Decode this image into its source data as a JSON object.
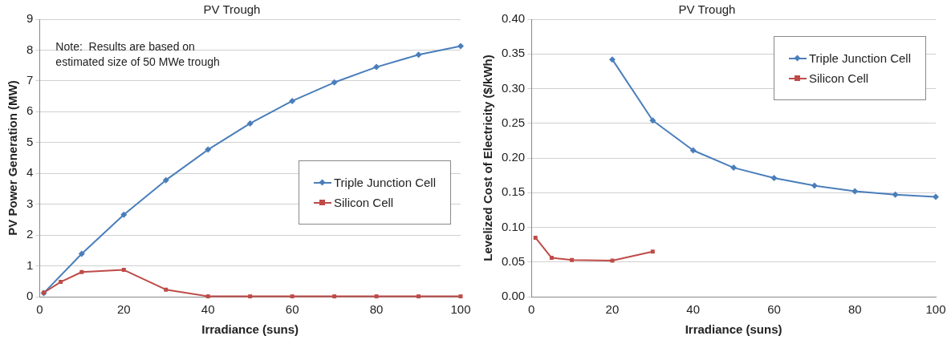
{
  "chart_data": [
    {
      "type": "line",
      "title": "PV Trough",
      "xlabel": "Irradiance (suns)",
      "ylabel": "PV Power Generation (MW)",
      "xlim": [
        0,
        100
      ],
      "xticks": [
        0,
        20,
        40,
        60,
        80,
        100
      ],
      "ylim": [
        0,
        9
      ],
      "yticks": [
        0,
        1,
        2,
        3,
        4,
        5,
        6,
        7,
        8,
        9
      ],
      "grid": "y",
      "legend": "center right",
      "annotations": [
        "Note:  Results are based on estimated size of 50 MWe trough"
      ],
      "series": [
        {
          "name": "Triple Junction Cell",
          "color": "#4a7ebb",
          "marker": "diamond",
          "x": [
            1,
            10,
            20,
            30,
            40,
            50,
            60,
            70,
            80,
            90,
            100
          ],
          "values": [
            0.12,
            1.39,
            2.66,
            3.78,
            4.77,
            5.62,
            6.35,
            6.95,
            7.45,
            7.85,
            8.13
          ]
        },
        {
          "name": "Silicon Cell",
          "color": "#be4b48",
          "marker": "square",
          "x": [
            1,
            5,
            10,
            20,
            30,
            40,
            50,
            60,
            70,
            80,
            90,
            100
          ],
          "values": [
            0.13,
            0.48,
            0.8,
            0.87,
            0.23,
            0.01,
            0.01,
            0.01,
            0.01,
            0.01,
            0.01,
            0.01
          ]
        }
      ]
    },
    {
      "type": "line",
      "title": "PV Trough",
      "xlabel": "Irradiance (suns)",
      "ylabel": "Levelized Cost of Electricity ($/kWh)",
      "xlim": [
        0,
        100
      ],
      "xticks": [
        0,
        20,
        40,
        60,
        80,
        100
      ],
      "ylim": [
        0,
        0.4
      ],
      "yticks": [
        {
          "value": 0,
          "label": "0.00"
        },
        {
          "value": 0.05,
          "label": "0.05"
        },
        {
          "value": 0.1,
          "label": "0.10"
        },
        {
          "value": 0.15,
          "label": "0.15"
        },
        {
          "value": 0.2,
          "label": "0.20"
        },
        {
          "value": 0.25,
          "label": "0.25"
        },
        {
          "value": 0.3,
          "label": "0.30"
        },
        {
          "value": 0.35,
          "label": "0.35"
        },
        {
          "value": 0.4,
          "label": "0.40"
        }
      ],
      "grid": "y",
      "legend": "top right",
      "series": [
        {
          "name": "Triple Junction Cell",
          "color": "#4a7ebb",
          "marker": "diamond",
          "x": [
            20,
            30,
            40,
            50,
            60,
            70,
            80,
            90,
            100
          ],
          "values": [
            0.342,
            0.254,
            0.211,
            0.186,
            0.171,
            0.16,
            0.152,
            0.147,
            0.144
          ]
        },
        {
          "name": "Silicon Cell",
          "color": "#be4b48",
          "marker": "square",
          "x": [
            1,
            5,
            10,
            20,
            30
          ],
          "values": [
            0.085,
            0.056,
            0.053,
            0.052,
            0.065
          ]
        }
      ]
    }
  ]
}
